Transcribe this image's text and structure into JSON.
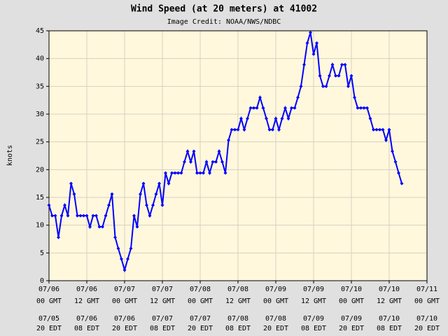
{
  "chart_data": {
    "type": "line",
    "title": "Wind Speed (at 20 meters) at 41002",
    "subtitle": "Image Credit: NOAA/NWS/NDBC",
    "y_label": "knots",
    "x": [
      0,
      1,
      2,
      3,
      4,
      5,
      6,
      7,
      8,
      9,
      10,
      11,
      12,
      13,
      14,
      15,
      16,
      17,
      18,
      19,
      20,
      21,
      22,
      23,
      24,
      25,
      26,
      27,
      28,
      29,
      30,
      31,
      32,
      33,
      34,
      35,
      36,
      37,
      38,
      39,
      40,
      41,
      42,
      43,
      44,
      45,
      46,
      47,
      48,
      49,
      50,
      51,
      52,
      53,
      54,
      55,
      56,
      57,
      58,
      59,
      60,
      61,
      62,
      63,
      64,
      65,
      66,
      67,
      68,
      69,
      70,
      71,
      72,
      73,
      74,
      75,
      76,
      77,
      78,
      79,
      80,
      81,
      82,
      83,
      84,
      85,
      86,
      87,
      88,
      89,
      90,
      91,
      92,
      93,
      94,
      95,
      96,
      97,
      98,
      99,
      100,
      101,
      102,
      103,
      104,
      105,
      106,
      107,
      108,
      109,
      110,
      111,
      112
    ],
    "series": [
      {
        "name": "Wind Speed",
        "color": "#0000ff",
        "values": [
          13.6,
          11.7,
          11.7,
          7.8,
          11.7,
          13.6,
          11.7,
          17.5,
          15.6,
          11.7,
          11.7,
          11.7,
          11.7,
          9.7,
          11.7,
          11.7,
          9.7,
          9.7,
          11.7,
          13.6,
          15.6,
          7.8,
          5.8,
          3.9,
          1.9,
          3.9,
          5.8,
          11.7,
          9.7,
          15.6,
          17.5,
          13.6,
          11.7,
          13.6,
          15.6,
          17.5,
          13.6,
          19.4,
          17.5,
          19.4,
          19.4,
          19.4,
          19.4,
          21.4,
          23.3,
          21.4,
          23.3,
          19.4,
          19.4,
          19.4,
          21.4,
          19.4,
          21.4,
          21.4,
          23.3,
          21.4,
          19.4,
          25.3,
          27.2,
          27.2,
          27.2,
          29.2,
          27.2,
          29.2,
          31.1,
          31.1,
          31.1,
          33.0,
          31.1,
          29.2,
          27.2,
          27.2,
          29.2,
          27.2,
          29.2,
          31.1,
          29.2,
          31.1,
          31.1,
          33.0,
          35.0,
          38.9,
          42.8,
          44.7,
          40.8,
          42.8,
          36.9,
          35.0,
          35.0,
          36.9,
          38.9,
          36.9,
          36.9,
          38.9,
          38.9,
          35.0,
          36.9,
          33.0,
          31.1,
          31.1,
          31.1,
          31.1,
          29.2,
          27.2,
          27.2,
          27.2,
          27.2,
          25.3,
          27.2,
          23.3,
          21.4,
          19.4,
          17.5
        ]
      }
    ],
    "xlim": [
      0,
      120
    ],
    "xticks": [
      {
        "value": 0,
        "label": "07/06"
      },
      {
        "value": 12,
        "label": "07/06"
      },
      {
        "value": 24,
        "label": "07/07"
      },
      {
        "value": 36,
        "label": "07/07"
      },
      {
        "value": 48,
        "label": "07/08"
      },
      {
        "value": 60,
        "label": "07/08"
      },
      {
        "value": 72,
        "label": "07/09"
      },
      {
        "value": 84,
        "label": "07/09"
      },
      {
        "value": 96,
        "label": "07/10"
      },
      {
        "value": 108,
        "label": "07/10"
      },
      {
        "value": 120,
        "label": "07/11"
      }
    ],
    "xtick_times": [
      "00 GMT",
      "12 GMT",
      "00 GMT",
      "12 GMT",
      "00 GMT",
      "12 GMT",
      "00 GMT",
      "12 GMT",
      "00 GMT",
      "12 GMT",
      "00 GMT"
    ],
    "xtick_local_dates": [
      "07/05",
      "07/06",
      "07/06",
      "07/07",
      "07/07",
      "07/08",
      "07/08",
      "07/09",
      "07/09",
      "07/10",
      "07/10"
    ],
    "xtick_local_times": [
      "20 EDT",
      "08 EDT",
      "20 EDT",
      "08 EDT",
      "20 EDT",
      "08 EDT",
      "20 EDT",
      "08 EDT",
      "20 EDT",
      "08 EDT",
      "20 EDT"
    ],
    "ylim": [
      0,
      45
    ],
    "yticks": [
      0,
      5,
      10,
      15,
      20,
      25,
      30,
      35,
      40,
      45
    ],
    "grid": true
  }
}
